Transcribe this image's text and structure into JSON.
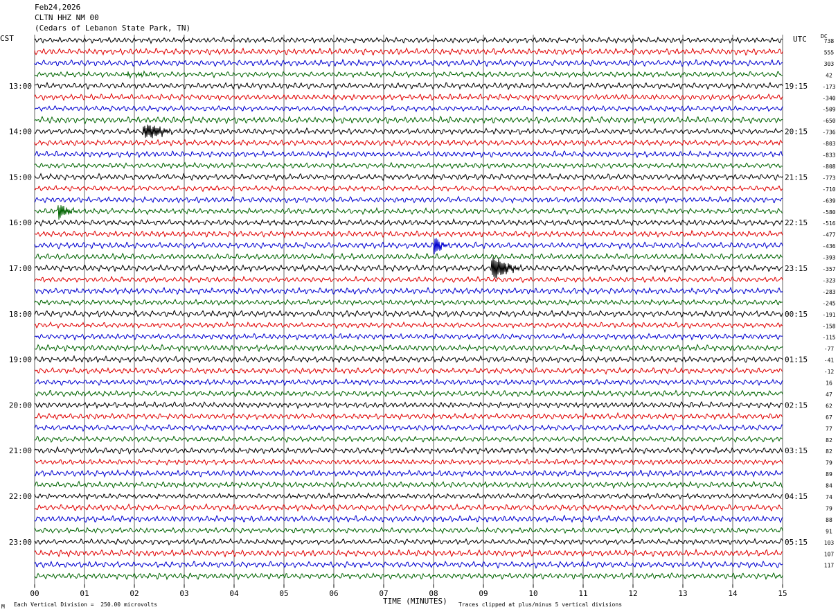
{
  "header": {
    "date": "Feb24,2026",
    "station": "CLTN HHZ NM 00",
    "location": "(Cedars of Lebanon State Park, TN)"
  },
  "labels": {
    "left_tz": "CST",
    "right_tz": "UTC",
    "dc_label": "DC",
    "xlabel": "TIME (MINUTES)",
    "footer_left": "Each Vertical Division =  250.00 microvolts",
    "footer_right": "Traces clipped at plus/minus 5 vertical divisions",
    "corner_mark": "M"
  },
  "chart_data": {
    "type": "line",
    "title": "",
    "xlabel": "TIME (MINUTES)",
    "x_range": [
      0,
      15
    ],
    "x_ticks": [
      "00",
      "01",
      "02",
      "03",
      "04",
      "05",
      "06",
      "07",
      "08",
      "09",
      "10",
      "11",
      "12",
      "13",
      "14",
      "15"
    ],
    "left_time_labels": [
      "13:00",
      "14:00",
      "15:00",
      "16:00",
      "17:00",
      "18:00",
      "19:00",
      "20:00",
      "21:00",
      "22:00",
      "23:00"
    ],
    "right_time_labels": [
      "19:15",
      "20:15",
      "21:15",
      "22:15",
      "23:15",
      "00:15",
      "01:15",
      "02:15",
      "03:15",
      "04:15",
      "05:15"
    ],
    "traces_per_hour": 4,
    "trace_count": 48,
    "trace_colors": [
      "#000000",
      "#e00000",
      "#0000d0",
      "#006400"
    ],
    "dc_offsets": [
      738,
      555,
      303,
      42,
      -173,
      -340,
      -509,
      -650,
      -736,
      -803,
      -833,
      -808,
      -773,
      -710,
      -639,
      -580,
      -516,
      -477,
      -436,
      -393,
      -357,
      -323,
      -283,
      -245,
      -191,
      -158,
      -115,
      -77,
      -41,
      -12,
      16,
      47,
      62,
      67,
      77,
      82,
      82,
      79,
      89,
      84,
      74,
      79,
      88,
      91,
      103,
      107,
      117
    ],
    "grid": true,
    "events": [
      {
        "trace": 8,
        "minute": 2.2,
        "amplitude": "large"
      },
      {
        "trace": 3,
        "minute": 1.9,
        "amplitude": "small"
      },
      {
        "trace": 15,
        "minute": 0.5,
        "amplitude": "small"
      },
      {
        "trace": 18,
        "minute": 8.05,
        "amplitude": "medium"
      },
      {
        "trace": 20,
        "minute": 9.2,
        "amplitude": "large"
      }
    ]
  }
}
